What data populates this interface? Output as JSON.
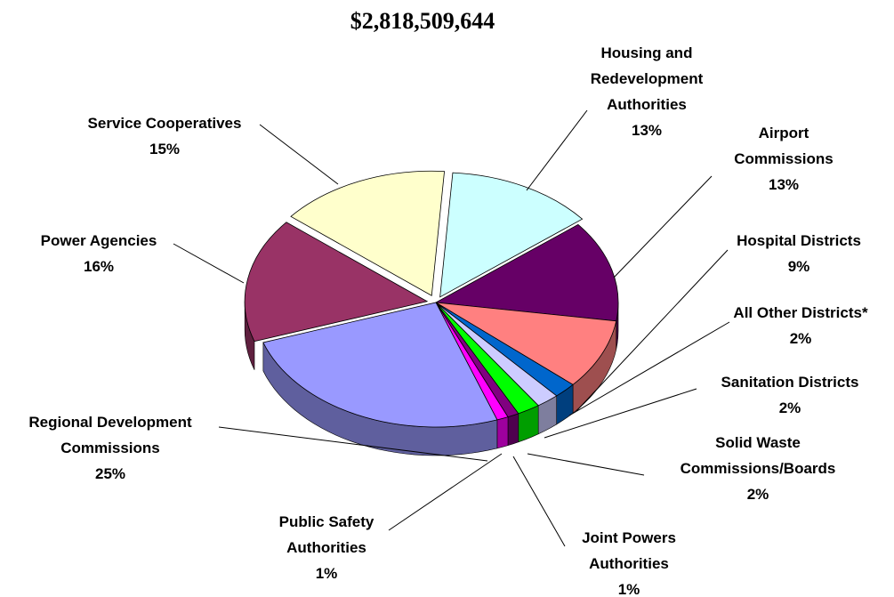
{
  "chart_data": {
    "type": "pie",
    "title": "$2,818,509,644",
    "slices": [
      {
        "label": "Housing and Redevelopment Authorities",
        "lines": [
          "Housing and",
          "Redevelopment",
          "Authorities"
        ],
        "pct_label": "13%",
        "value": 13,
        "color": "#ccffff"
      },
      {
        "label": "Airport Commissions",
        "lines": [
          "Airport",
          "Commissions"
        ],
        "pct_label": "13%",
        "value": 13,
        "color": "#660066"
      },
      {
        "label": "Hospital Districts",
        "lines": [
          "Hospital Districts"
        ],
        "pct_label": "9%",
        "value": 9,
        "color": "#ff8080"
      },
      {
        "label": "All Other Districts*",
        "lines": [
          "All Other Districts*"
        ],
        "pct_label": "2%",
        "value": 2,
        "color": "#0066cc"
      },
      {
        "label": "Sanitation Districts",
        "lines": [
          "Sanitation Districts"
        ],
        "pct_label": "2%",
        "value": 2,
        "color": "#ccccff"
      },
      {
        "label": "Solid Waste Commissions/Boards",
        "lines": [
          "Solid Waste",
          "Commissions/Boards"
        ],
        "pct_label": "2%",
        "value": 2,
        "color": "#00ff00"
      },
      {
        "label": "Joint Powers Authorities",
        "lines": [
          "Joint Powers",
          "Authorities"
        ],
        "pct_label": "1%",
        "value": 1,
        "color": "#800080"
      },
      {
        "label": "Public Safety Authorities",
        "lines": [
          "Public Safety",
          "Authorities"
        ],
        "pct_label": "1%",
        "value": 1,
        "color": "#ff00ff"
      },
      {
        "label": "Regional Development Commissions",
        "lines": [
          "Regional Development",
          "Commissions"
        ],
        "pct_label": "25%",
        "value": 25,
        "color": "#9999ff"
      },
      {
        "label": "Power Agencies",
        "lines": [
          "Power Agencies"
        ],
        "pct_label": "16%",
        "value": 16,
        "color": "#993366"
      },
      {
        "label": "Service Cooperatives",
        "lines": [
          "Service Cooperatives"
        ],
        "pct_label": "15%",
        "value": 15,
        "color": "#ffffcc"
      }
    ]
  }
}
